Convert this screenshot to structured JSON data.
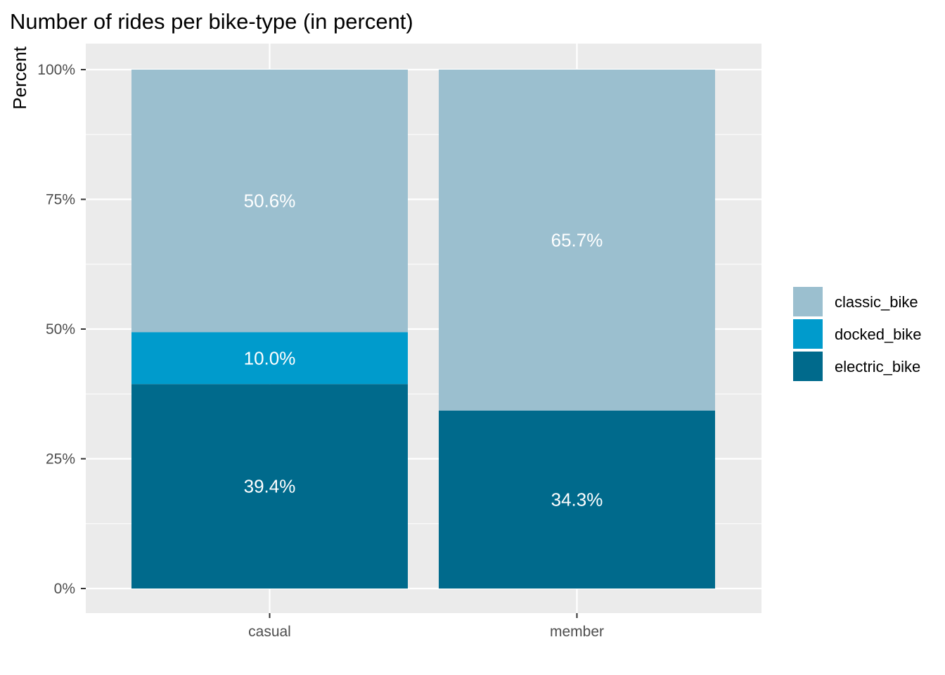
{
  "chart_data": {
    "type": "bar",
    "stacked": true,
    "title": "Number of rides per bike-type (in percent)",
    "xlabel": "",
    "ylabel": "Percent",
    "ylim": [
      0,
      100
    ],
    "yticks": [
      0,
      25,
      50,
      75,
      100
    ],
    "ytick_labels": [
      "0%",
      "25%",
      "50%",
      "75%",
      "100%"
    ],
    "categories": [
      "casual",
      "member"
    ],
    "series": [
      {
        "name": "electric_bike",
        "values": [
          39.4,
          34.3
        ],
        "labels": [
          "39.4%",
          "34.3%"
        ],
        "color": "#006a8c"
      },
      {
        "name": "docked_bike",
        "values": [
          10.0,
          0
        ],
        "labels": [
          "10.0%",
          ""
        ],
        "color": "#009bcc"
      },
      {
        "name": "classic_bike",
        "values": [
          50.6,
          65.7
        ],
        "labels": [
          "50.6%",
          "65.7%"
        ],
        "color": "#9bbfcf"
      }
    ],
    "legend": {
      "placement": "right",
      "entries": [
        "classic_bike",
        "docked_bike",
        "electric_bike"
      ]
    },
    "grid": true,
    "panel_color": "#ebebeb",
    "grid_color": "#ffffff"
  }
}
